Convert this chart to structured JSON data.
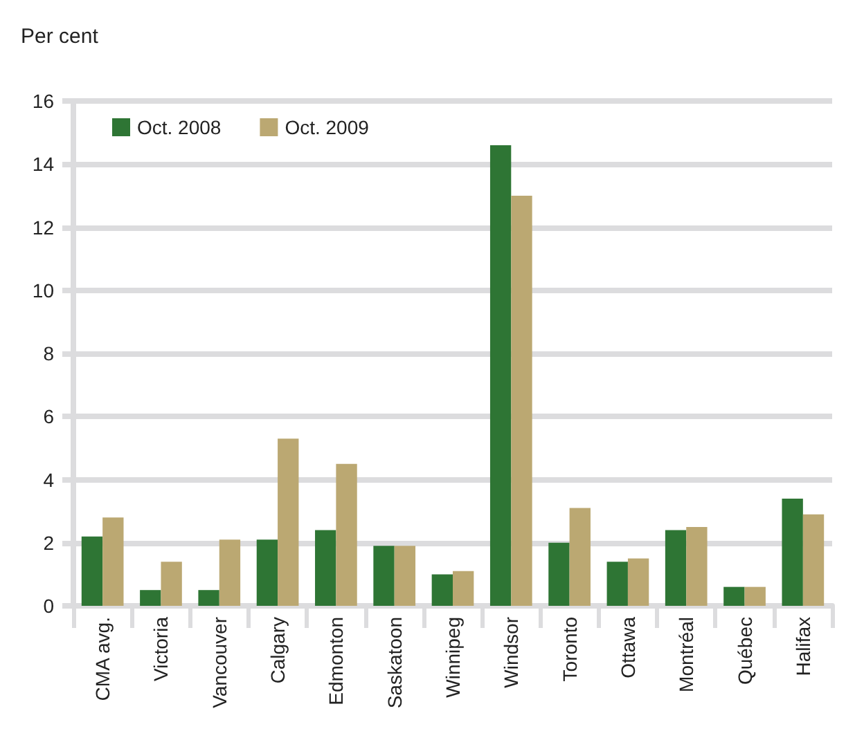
{
  "chart_data": {
    "type": "bar",
    "ylabel": "Per cent",
    "categories": [
      "CMA avg.",
      "Victoria",
      "Vancouver",
      "Calgary",
      "Edmonton",
      "Saskatoon",
      "Winnipeg",
      "Windsor",
      "Toronto",
      "Ottawa",
      "Montréal",
      "Québec",
      "Halifax"
    ],
    "series": [
      {
        "name": "Oct. 2008",
        "color": "#2e7534",
        "values": [
          2.2,
          0.5,
          0.5,
          2.1,
          2.4,
          1.9,
          1.0,
          14.6,
          2.0,
          1.4,
          2.4,
          0.6,
          3.4
        ]
      },
      {
        "name": "Oct. 2009",
        "color": "#bba872",
        "values": [
          2.8,
          1.4,
          2.1,
          5.3,
          4.5,
          1.9,
          1.1,
          13.0,
          3.1,
          1.5,
          2.5,
          0.6,
          2.9
        ]
      }
    ],
    "ylim": [
      0,
      16
    ],
    "yticks": [
      0,
      2,
      4,
      6,
      8,
      10,
      12,
      14,
      16
    ],
    "grid": "y",
    "legend": "top left"
  }
}
